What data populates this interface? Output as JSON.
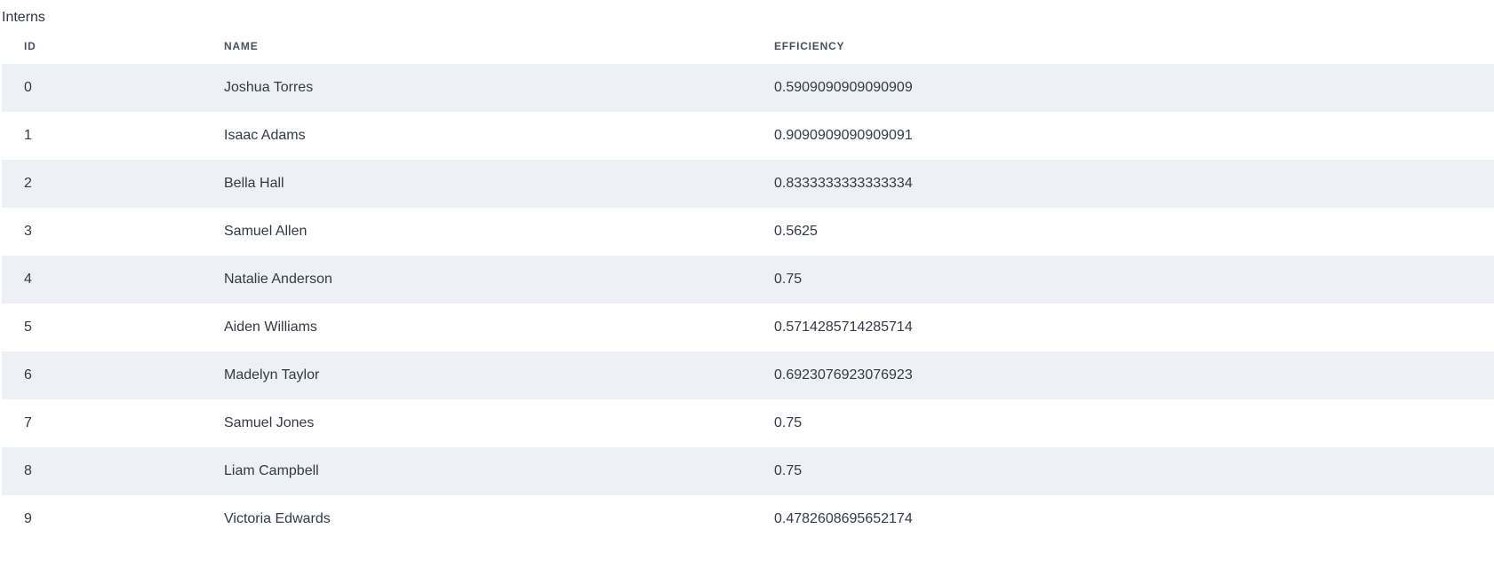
{
  "table": {
    "caption": "Interns",
    "columns": {
      "id": "ID",
      "name": "NAME",
      "efficiency": "EFFICIENCY"
    },
    "rows": [
      {
        "id": "0",
        "name": "Joshua Torres",
        "efficiency": "0.5909090909090909"
      },
      {
        "id": "1",
        "name": "Isaac Adams",
        "efficiency": "0.9090909090909091"
      },
      {
        "id": "2",
        "name": "Bella Hall",
        "efficiency": "0.8333333333333334"
      },
      {
        "id": "3",
        "name": "Samuel Allen",
        "efficiency": "0.5625"
      },
      {
        "id": "4",
        "name": "Natalie Anderson",
        "efficiency": "0.75"
      },
      {
        "id": "5",
        "name": "Aiden Williams",
        "efficiency": "0.5714285714285714"
      },
      {
        "id": "6",
        "name": "Madelyn Taylor",
        "efficiency": "0.6923076923076923"
      },
      {
        "id": "7",
        "name": "Samuel Jones",
        "efficiency": "0.75"
      },
      {
        "id": "8",
        "name": "Liam Campbell",
        "efficiency": "0.75"
      },
      {
        "id": "9",
        "name": "Victoria Edwards",
        "efficiency": "0.4782608695652174"
      }
    ]
  },
  "colors": {
    "stripe": "#edf1f5",
    "text": "#333a44",
    "header_text": "#47505c"
  }
}
